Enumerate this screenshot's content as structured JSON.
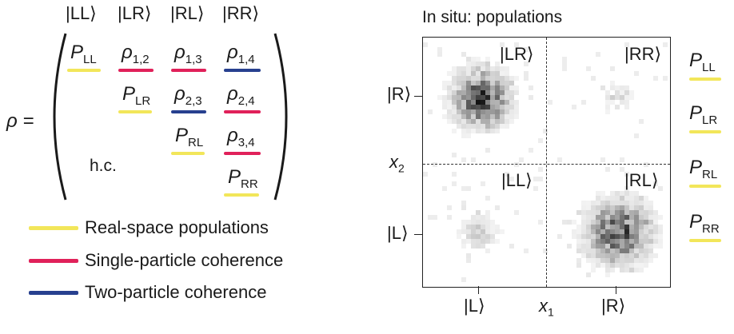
{
  "matrix": {
    "symbol": "ρ =",
    "column_headers": [
      "|LL⟩",
      "|LR⟩",
      "|RL⟩",
      "|RR⟩"
    ],
    "cells": {
      "p_ll": {
        "base": "P",
        "sub": "LL"
      },
      "rho_12": {
        "base": "ρ",
        "sub": "1,2"
      },
      "rho_13": {
        "base": "ρ",
        "sub": "1,3"
      },
      "rho_14": {
        "base": "ρ",
        "sub": "1,4"
      },
      "p_lr": {
        "base": "P",
        "sub": "LR"
      },
      "rho_23": {
        "base": "ρ",
        "sub": "2,3"
      },
      "rho_24": {
        "base": "ρ",
        "sub": "2,4"
      },
      "p_rl": {
        "base": "P",
        "sub": "RL"
      },
      "rho_34": {
        "base": "ρ",
        "sub": "3,4"
      },
      "p_rr": {
        "base": "P",
        "sub": "RR"
      }
    },
    "hc_label": "h.c."
  },
  "legend": {
    "items": [
      {
        "label": "Real-space populations",
        "color": "#f2e65a"
      },
      {
        "label": "Single-particle coherence",
        "color": "#e0215a"
      },
      {
        "label": "Two-particle coherence",
        "color": "#27408f"
      }
    ]
  },
  "plot": {
    "title": "In situ: populations",
    "quadrant_labels": {
      "top_left": "|LR⟩",
      "top_right": "|RR⟩",
      "bottom_left": "|LL⟩",
      "bottom_right": "|RL⟩"
    },
    "y_ticks": [
      "|R⟩",
      "|L⟩"
    ],
    "x_ticks": [
      "|L⟩",
      "|R⟩"
    ],
    "x_label": {
      "base": "x",
      "sub": "1"
    },
    "y_label": {
      "base": "x",
      "sub": "2"
    },
    "side_labels": [
      {
        "base": "P",
        "sub": "LL"
      },
      {
        "base": "P",
        "sub": "LR"
      },
      {
        "base": "P",
        "sub": "RL"
      },
      {
        "base": "P",
        "sub": "RR"
      }
    ]
  },
  "colors": {
    "yellow": "#f2e65a",
    "red": "#e0215a",
    "blue": "#27408f"
  }
}
